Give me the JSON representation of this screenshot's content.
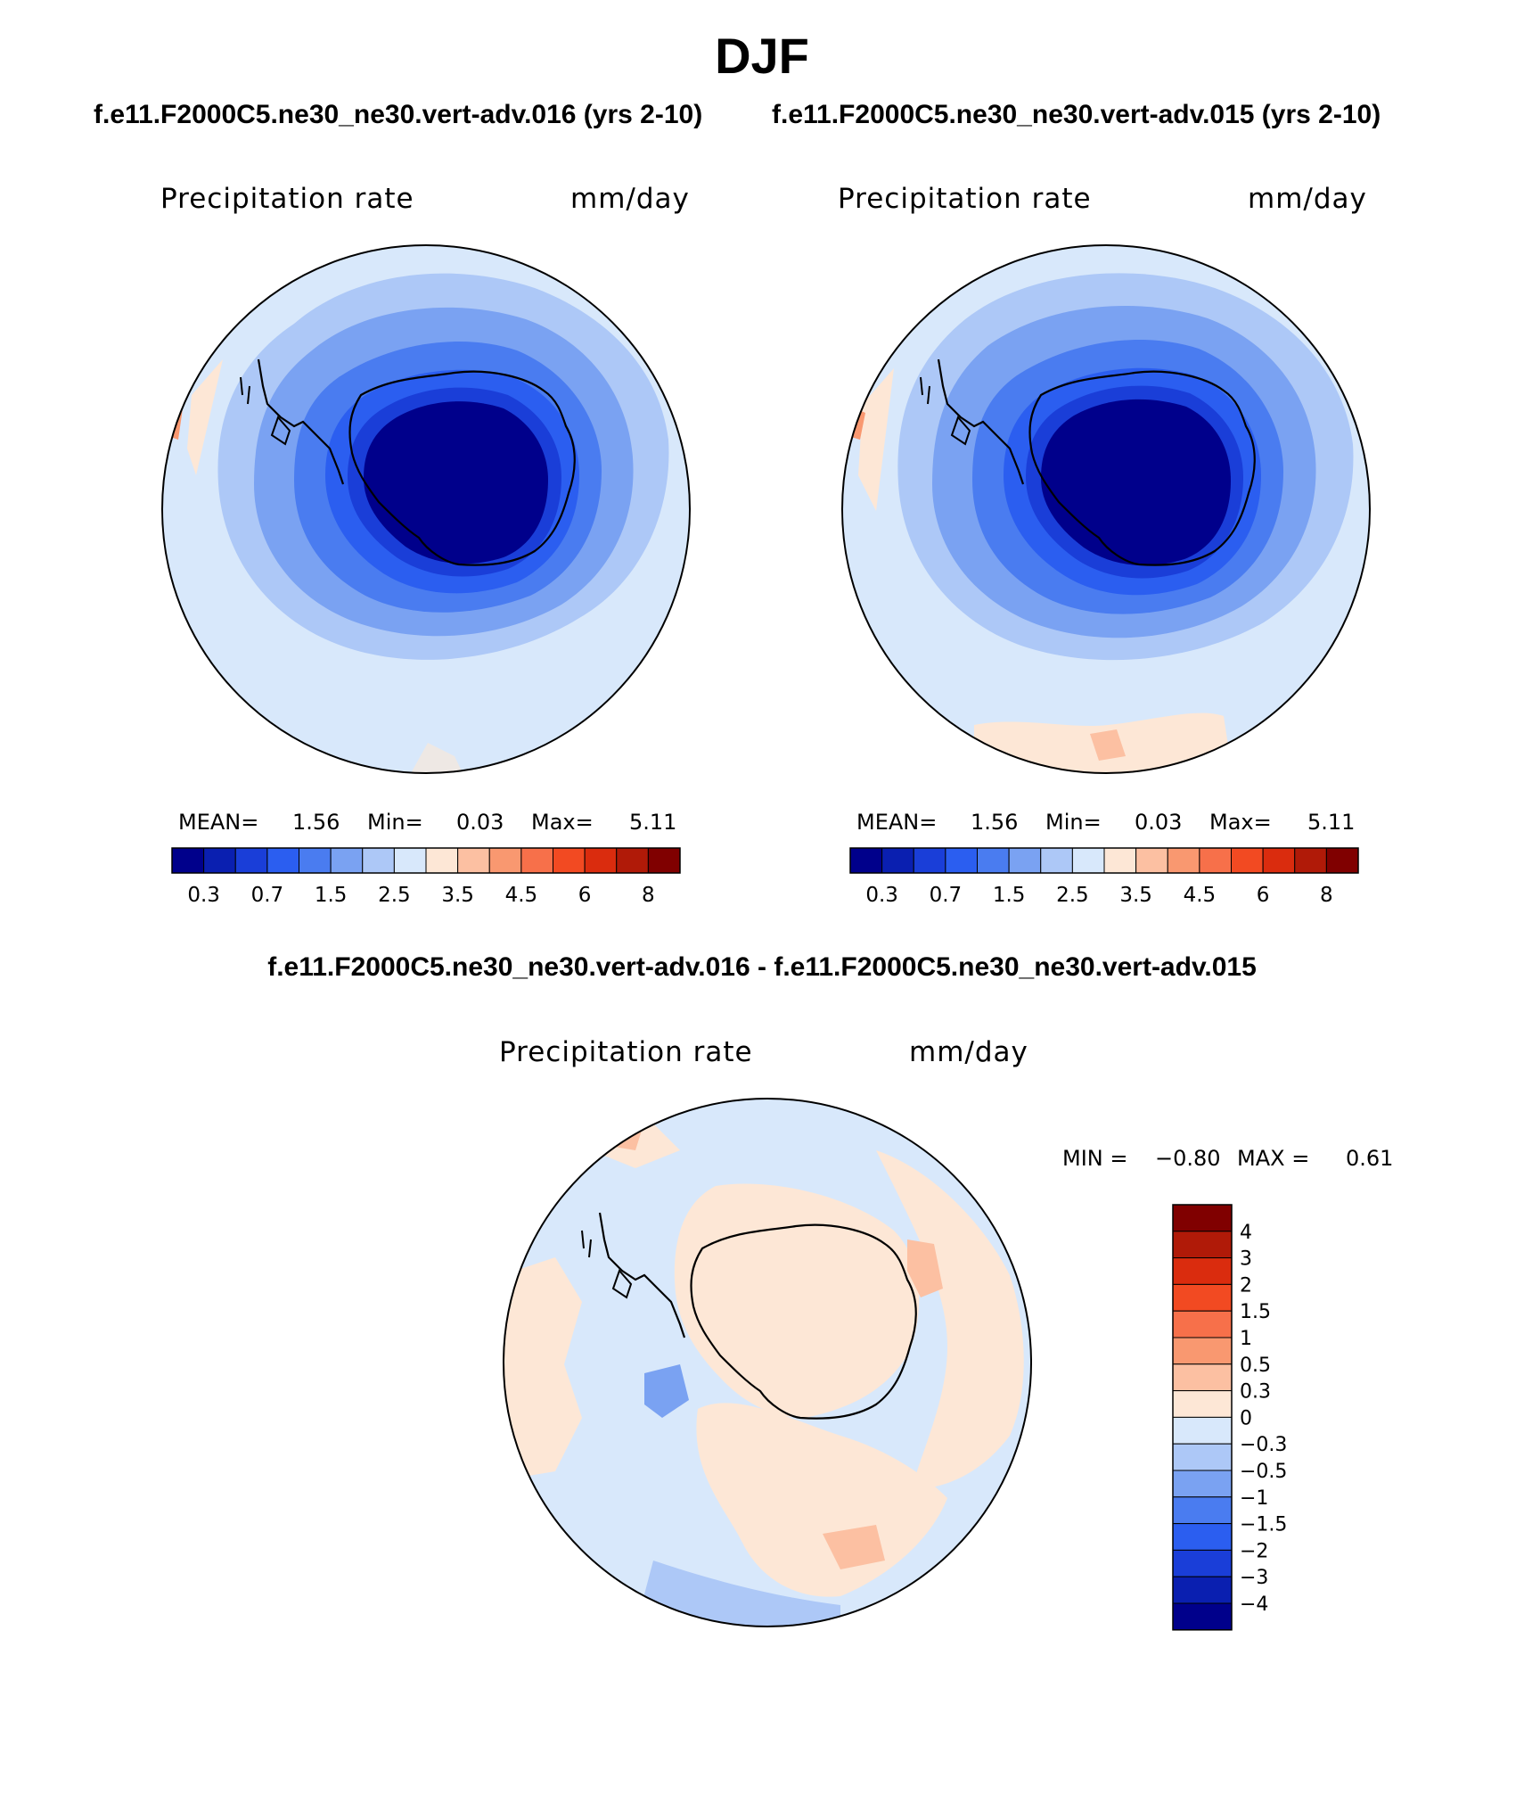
{
  "title": "DJF",
  "panels": [
    {
      "case_title": "f.e11.F2000C5.ne30_ne30.vert-adv.016 (yrs 2-10)",
      "variable": "Precipitation rate",
      "units": "mm/day",
      "mean_label": "MEAN=",
      "mean": "1.56",
      "min_label": "Min=",
      "min": "0.03",
      "max_label": "Max=",
      "max": "5.11"
    },
    {
      "case_title": "f.e11.F2000C5.ne30_ne30.vert-adv.015 (yrs 2-10)",
      "variable": "Precipitation rate",
      "units": "mm/day",
      "mean_label": "MEAN=",
      "mean": "1.56",
      "min_label": "Min=",
      "min": "0.03",
      "max_label": "Max=",
      "max": "5.11"
    }
  ],
  "difference": {
    "title": "f.e11.F2000C5.ne30_ne30.vert-adv.016 - f.e11.F2000C5.ne30_ne30.vert-adv.015",
    "variable": "Precipitation rate",
    "units": "mm/day",
    "min_label": "MIN =",
    "min": "−0.80",
    "max_label": "MAX =",
    "max": "0.61"
  },
  "colorbar_main": {
    "ticks": [
      "0.3",
      "0.7",
      "1.5",
      "2.5",
      "3.5",
      "4.5",
      "6",
      "8"
    ],
    "colors": [
      "#00008b",
      "#0a1fb0",
      "#1a3ed8",
      "#2b5ef0",
      "#4a7cf0",
      "#7aa2f2",
      "#adc8f7",
      "#d8e8fb",
      "#fde7d6",
      "#fcc0a2",
      "#f99870",
      "#f7704a",
      "#f24a22",
      "#da2c0e",
      "#b01a08",
      "#800000"
    ]
  },
  "colorbar_diff": {
    "labels": [
      "4",
      "3",
      "2",
      "1.5",
      "1",
      "0.5",
      "0.3",
      "0",
      "−0.3",
      "−0.5",
      "−1",
      "−1.5",
      "−2",
      "−3",
      "−4"
    ],
    "colors": [
      "#800000",
      "#b01a08",
      "#da2c0e",
      "#f24a22",
      "#f7704a",
      "#f99870",
      "#fcc0a2",
      "#fde7d6",
      "#d8e8fb",
      "#adc8f7",
      "#7aa2f2",
      "#4a7cf0",
      "#2b5ef0",
      "#1a3ed8",
      "#0a1fb0",
      "#00008b"
    ]
  }
}
